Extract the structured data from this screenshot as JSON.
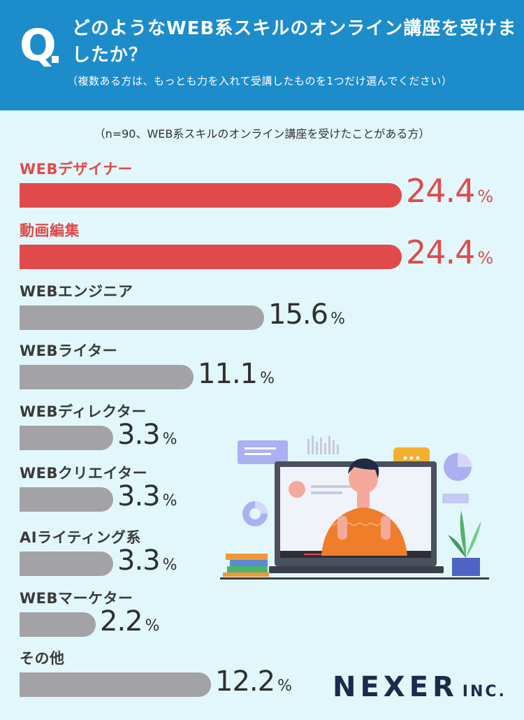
{
  "header": {
    "q_letter": "Q",
    "question": "どのようなWEB系スキルのオンライン講座を受けましたか？",
    "sub": "（複数ある方は、もっとも力を入れて受講したものを1つだけ選んでください）"
  },
  "note": "（n=90、WEB系スキルのオンライン講座を受けたことがある方）",
  "colors": {
    "header_bg": "#1c8ccb",
    "page_bg": "#e2f7fb",
    "highlight": "#e04a4a",
    "bar_gray": "#a2a2a7"
  },
  "chart_data": {
    "type": "bar",
    "orientation": "horizontal",
    "categories": [
      "WEBデザイナー",
      "動画編集",
      "WEBエンジニア",
      "WEBライター",
      "WEBディレクター",
      "WEBクリエイター",
      "AIライティング系",
      "WEBマーケター",
      "その他"
    ],
    "values": [
      24.4,
      24.4,
      15.6,
      11.1,
      3.3,
      3.3,
      3.3,
      2.2,
      12.2
    ],
    "value_labels": [
      "24.4",
      "24.4",
      "15.6",
      "11.1",
      "3.3",
      "3.3",
      "3.3",
      "2.2",
      "12.2"
    ],
    "unit": "%",
    "highlighted": [
      true,
      true,
      false,
      false,
      false,
      false,
      false,
      false,
      false
    ]
  },
  "logo": {
    "name": "NEXER",
    "suffix": "INC."
  }
}
